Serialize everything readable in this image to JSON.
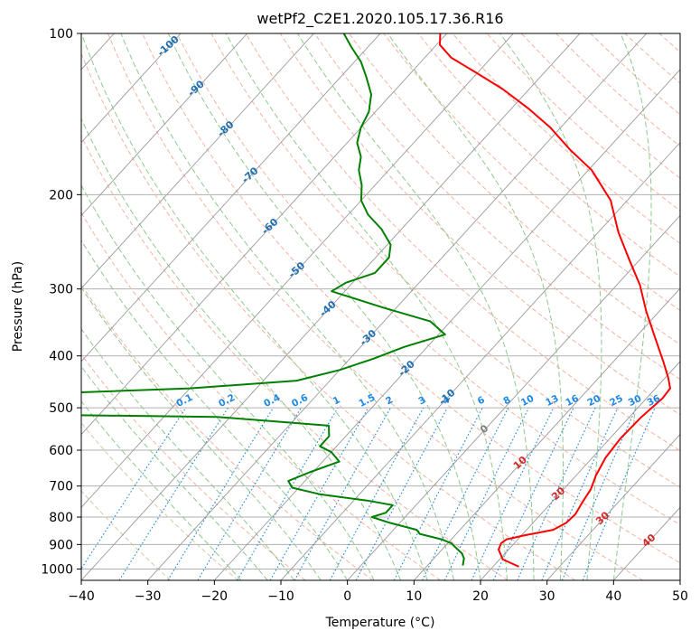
{
  "chart_data": {
    "type": "line",
    "title": "wetPf2_C2E1.2020.105.17.36.R16",
    "xlabel": "Temperature (°C)",
    "ylabel": "Pressure (hPa)",
    "xlim": [
      -40,
      50
    ],
    "ylim": [
      1050,
      100
    ],
    "y_scale": "log",
    "grid": true,
    "x_ticks": [
      -40,
      -30,
      -20,
      -10,
      0,
      10,
      20,
      30,
      40,
      50
    ],
    "y_ticks": [
      100,
      200,
      300,
      400,
      500,
      600,
      700,
      800,
      900,
      1000
    ],
    "series": [
      {
        "role": "temperature",
        "color": "#ff0000",
        "points": [
          [
            23.9,
            990
          ],
          [
            20.5,
            960
          ],
          [
            18.5,
            920
          ],
          [
            18.0,
            895
          ],
          [
            18.3,
            880
          ],
          [
            20.5,
            865
          ],
          [
            24.0,
            845
          ],
          [
            25.0,
            820
          ],
          [
            25.2,
            790
          ],
          [
            24.6,
            750
          ],
          [
            24.1,
            710
          ],
          [
            23.0,
            670
          ],
          [
            22.0,
            620
          ],
          [
            21.6,
            570
          ],
          [
            21.8,
            520
          ],
          [
            22.4,
            480
          ],
          [
            22.2,
            460
          ],
          [
            20.5,
            440
          ],
          [
            17.5,
            410
          ],
          [
            13.0,
            370
          ],
          [
            8.0,
            330
          ],
          [
            3.5,
            295
          ],
          [
            -1.5,
            265
          ],
          [
            -7.0,
            235
          ],
          [
            -12.5,
            205
          ],
          [
            -19.5,
            180
          ],
          [
            -25.5,
            165
          ],
          [
            -31.5,
            150
          ],
          [
            -37.5,
            138
          ],
          [
            -44.0,
            127
          ],
          [
            -50.5,
            118
          ],
          [
            -56.0,
            111
          ],
          [
            -59.5,
            105
          ],
          [
            -61.0,
            100
          ]
        ]
      },
      {
        "role": "dewpoint",
        "color": "#008000",
        "points": [
          [
            15.3,
            985
          ],
          [
            14.5,
            955
          ],
          [
            13.5,
            935
          ],
          [
            12.0,
            915
          ],
          [
            10.5,
            895
          ],
          [
            8.5,
            880
          ],
          [
            4.5,
            860
          ],
          [
            3.5,
            845
          ],
          [
            -1.5,
            820
          ],
          [
            -5.0,
            800
          ],
          [
            -3.5,
            785
          ],
          [
            -3.5,
            760
          ],
          [
            -8.0,
            745
          ],
          [
            -16.0,
            725
          ],
          [
            -21.0,
            705
          ],
          [
            -22.5,
            685
          ],
          [
            -20.5,
            660
          ],
          [
            -17.5,
            630
          ],
          [
            -20.0,
            605
          ],
          [
            -22.5,
            590
          ],
          [
            -22.5,
            565
          ],
          [
            -24.0,
            540
          ],
          [
            -42.0,
            520
          ],
          [
            -70.0,
            515
          ],
          [
            -90.0,
            500
          ],
          [
            -100.0,
            490
          ],
          [
            -80.0,
            475
          ],
          [
            -50.0,
            460
          ],
          [
            -35.0,
            445
          ],
          [
            -30.0,
            425
          ],
          [
            -26.5,
            405
          ],
          [
            -23.5,
            385
          ],
          [
            -19.0,
            365
          ],
          [
            -23.0,
            345
          ],
          [
            -32.0,
            325
          ],
          [
            -42.0,
            303
          ],
          [
            -41.0,
            292
          ],
          [
            -38.0,
            280
          ],
          [
            -38.0,
            262
          ],
          [
            -39.5,
            248
          ],
          [
            -43.0,
            232
          ],
          [
            -47.0,
            218
          ],
          [
            -50.0,
            205
          ],
          [
            -52.0,
            192
          ],
          [
            -54.5,
            180
          ],
          [
            -56.0,
            170
          ],
          [
            -58.5,
            160
          ],
          [
            -60.0,
            150
          ],
          [
            -61.0,
            140
          ],
          [
            -63.0,
            130
          ],
          [
            -66.0,
            121
          ],
          [
            -69.0,
            113
          ],
          [
            -72.5,
            106
          ],
          [
            -75.5,
            100
          ]
        ]
      }
    ],
    "isotherm_labels": [
      "-100",
      "-90",
      "-80",
      "-70",
      "-60",
      "-50",
      "-40",
      "-30",
      "-20",
      "-10",
      "0",
      "10",
      "20",
      "30",
      "40"
    ],
    "isotherm_label_values": [
      -100,
      -90,
      -80,
      -70,
      -60,
      -50,
      -40,
      -30,
      -20,
      -10,
      0,
      10,
      20,
      30,
      40
    ],
    "mixing_ratio_labels": [
      "0.1",
      "0.2",
      "0.4",
      "0.6",
      "1",
      "1.5",
      "2",
      "3",
      "4",
      "6",
      "8",
      "10",
      "13",
      "16",
      "20",
      "25",
      "30",
      "36"
    ],
    "mixing_ratio_values": [
      0.1,
      0.2,
      0.4,
      0.6,
      1,
      1.5,
      2,
      3,
      4,
      6,
      8,
      10,
      13,
      16,
      20,
      25,
      30,
      36
    ],
    "colors": {
      "isotherm": "#808080",
      "dry_adiabat": "#d2b48c",
      "moist_adiabat": "#90c890",
      "mixing_ratio": "#1e88e5",
      "isotherm_label_cold": "#1f6fb4",
      "isotherm_label_warm": "#d62728",
      "isotherm_label_zero": "#808080",
      "temperature": "#ff0000",
      "dewpoint": "#008000"
    }
  }
}
